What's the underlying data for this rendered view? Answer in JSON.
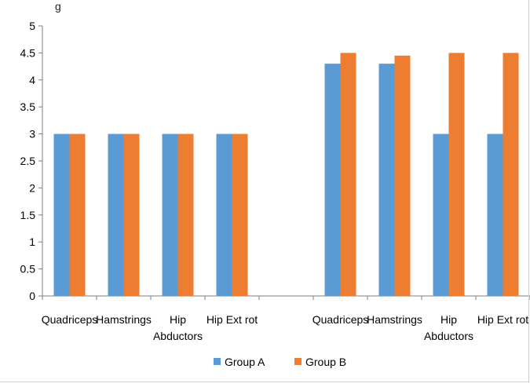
{
  "header_fragment": "g",
  "colors": {
    "group_a": "#5b9bd5",
    "group_b": "#ed7d31",
    "axis": "#7f7f7f",
    "text": "#000000"
  },
  "chart_data": {
    "type": "bar",
    "categories": [
      [
        "Quadriceps"
      ],
      [
        "Hamstrings"
      ],
      [
        "Hip",
        "Abductors"
      ],
      [
        "Hip Ext rot"
      ],
      [
        ""
      ],
      [
        "Quadriceps"
      ],
      [
        "Hamstrings"
      ],
      [
        "Hip",
        "Abductors"
      ],
      [
        "Hip Ext rot"
      ]
    ],
    "series": [
      {
        "name": "Group A",
        "values": [
          3,
          3,
          3,
          3,
          null,
          4.3,
          4.3,
          3,
          3
        ]
      },
      {
        "name": "Group B",
        "values": [
          3,
          3,
          3,
          3,
          null,
          4.5,
          4.45,
          4.5,
          4.5
        ]
      }
    ],
    "yticks": [
      "0",
      "0.5",
      "1",
      "1.5",
      "2",
      "2.5",
      "3",
      "3.5",
      "4",
      "4.5",
      "5"
    ],
    "ylim": [
      0,
      5
    ],
    "grid": false,
    "legend": "bottom-center",
    "title": "",
    "xlabel": "",
    "ylabel": ""
  }
}
